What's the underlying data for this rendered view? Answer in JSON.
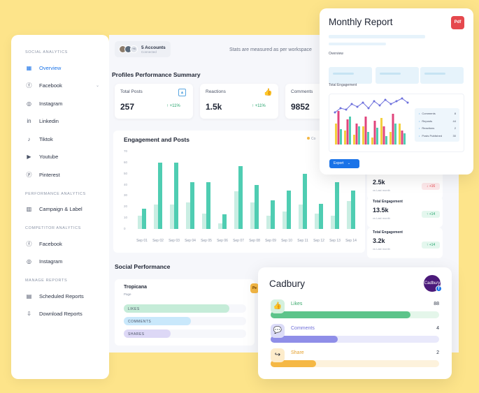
{
  "sidebar": {
    "sections": [
      {
        "title": "SOCIAL ANALYTICS",
        "items": [
          {
            "label": "Overview",
            "icon": "grid-icon",
            "active": true
          },
          {
            "label": "Facebook",
            "icon": "facebook-icon",
            "has_chevron": true
          },
          {
            "label": "Instagram",
            "icon": "instagram-icon"
          },
          {
            "label": "Linkedin",
            "icon": "linkedin-icon"
          },
          {
            "label": "Tiktok",
            "icon": "tiktok-icon"
          },
          {
            "label": "Youtube",
            "icon": "youtube-icon"
          },
          {
            "label": "Pinterest",
            "icon": "pinterest-icon"
          }
        ]
      },
      {
        "title": "PERFORMANCE ANALYTICS",
        "items": [
          {
            "label": "Campaign & Label",
            "icon": "campaign-icon"
          }
        ]
      },
      {
        "title": "COMPETITOR ANALYTICS",
        "items": [
          {
            "label": "Facebook",
            "icon": "facebook-icon"
          },
          {
            "label": "Instagram",
            "icon": "instagram-icon"
          }
        ]
      },
      {
        "title": "MANAGE REPORTS",
        "items": [
          {
            "label": "Scheduled Reports",
            "icon": "document-icon"
          },
          {
            "label": "Download Reports",
            "icon": "download-document-icon"
          }
        ]
      }
    ]
  },
  "header": {
    "accounts_label": "5 Accounts",
    "accounts_sub": "Connected",
    "avatar_extra": "+4",
    "stats_note": "Stats are measured as per workspace"
  },
  "profiles": {
    "title": "Profiles Performance Summary",
    "kpis": [
      {
        "label": "Total Posts",
        "value": "257",
        "change": "↑ +11%",
        "icon": "image-icon",
        "icon_color": "#5aa6e0"
      },
      {
        "label": "Reactions",
        "value": "1.5k",
        "change": "↑ +11%",
        "icon": "thumbs-up-icon",
        "icon_color": "#e5484d"
      },
      {
        "label": "Comments",
        "value": "9852",
        "change": "",
        "icon": "",
        "icon_color": ""
      }
    ]
  },
  "engagement": {
    "title": "Engagement and Posts",
    "legend_label": "Co",
    "colors": {
      "light": "#c9eee3",
      "dark": "#4fcdb2"
    }
  },
  "chart_data": {
    "type": "bar",
    "title": "Engagement and Posts",
    "categories": [
      "Sep 01",
      "Sep 02",
      "Sep 03",
      "Sep 04",
      "Sep 05",
      "Sep 06",
      "Sep 07",
      "Sep 08",
      "Sep 09",
      "Sep 10",
      "Sep 11",
      "Sep 12",
      "Sep 13",
      "Sep 14"
    ],
    "y_ticks": [
      "70",
      "60",
      "50",
      "40",
      "30",
      "20",
      "10",
      "0"
    ],
    "ylim": [
      0,
      70
    ],
    "series": [
      {
        "values": [
          12,
          22,
          22,
          24,
          14,
          5,
          34,
          24,
          12,
          16,
          22,
          14,
          12,
          25
        ]
      },
      {
        "values": [
          18,
          60,
          60,
          42,
          42,
          13,
          57,
          40,
          26,
          35,
          50,
          23,
          42,
          35
        ]
      }
    ]
  },
  "social": {
    "title": "Social Performance",
    "name": "Tropicana",
    "sub": "Page",
    "badge": "Pe",
    "rows": [
      {
        "label": "LIKES",
        "fraction": 0.86,
        "color": "#c5ecd8"
      },
      {
        "label": "COMMENTS",
        "fraction": 0.55,
        "color": "#c9e8fb"
      },
      {
        "label": "SHARES",
        "fraction": 0.38,
        "color": "#ddd8f6"
      }
    ]
  },
  "mini_cards": [
    {
      "label": "",
      "value": "2.5k",
      "sub": "vs Last month",
      "change": "↓ +16",
      "trend": "down"
    },
    {
      "label": "Total Engagement",
      "value": "13.5k",
      "sub": "vs Last month",
      "change": "↑ +14",
      "trend": "up"
    },
    {
      "label": "Total Engagement",
      "value": "3.2k",
      "sub": "vs Last month",
      "change": "↑ +14",
      "trend": "up"
    }
  ],
  "report": {
    "title": "Monthly Report",
    "pdf_label": "Pdf",
    "overview_label": "Overview",
    "engagement_label": "Total Engagement",
    "legend": [
      {
        "label": "Comments",
        "value": "8"
      },
      {
        "label": "Reposts",
        "value": "44"
      },
      {
        "label": "Reactions",
        "value": "2"
      },
      {
        "label": "Posts Published",
        "value": "30"
      }
    ],
    "export_label": "Export",
    "bar_colors": [
      "#f4d03f",
      "#e0447c",
      "#4fcdb2"
    ],
    "line_color": "#6c6fdc"
  },
  "cadbury": {
    "title": "Cadbury",
    "logo_text": "Cadbury",
    "rows": [
      {
        "label": "Likes",
        "value": "88",
        "fraction": 0.83,
        "color": "#5cc48a",
        "bg": "#e4f6ea",
        "label_color": "#3aa86b",
        "icon": "thumbs-up-icon",
        "icon_bg": "#d4f0de",
        "glyph": "👍"
      },
      {
        "label": "Comments",
        "value": "4",
        "fraction": 0.4,
        "color": "#8f8ee8",
        "bg": "#e9e9fb",
        "label_color": "#6f6ed8",
        "icon": "chat-icon",
        "icon_bg": "#dcdcf8",
        "glyph": "💬"
      },
      {
        "label": "Share",
        "value": "2",
        "fraction": 0.27,
        "color": "#f5b845",
        "bg": "#fdf2dc",
        "label_color": "#e5a12e",
        "icon": "share-icon",
        "icon_bg": "#fdeccb",
        "glyph": "↪"
      }
    ]
  }
}
